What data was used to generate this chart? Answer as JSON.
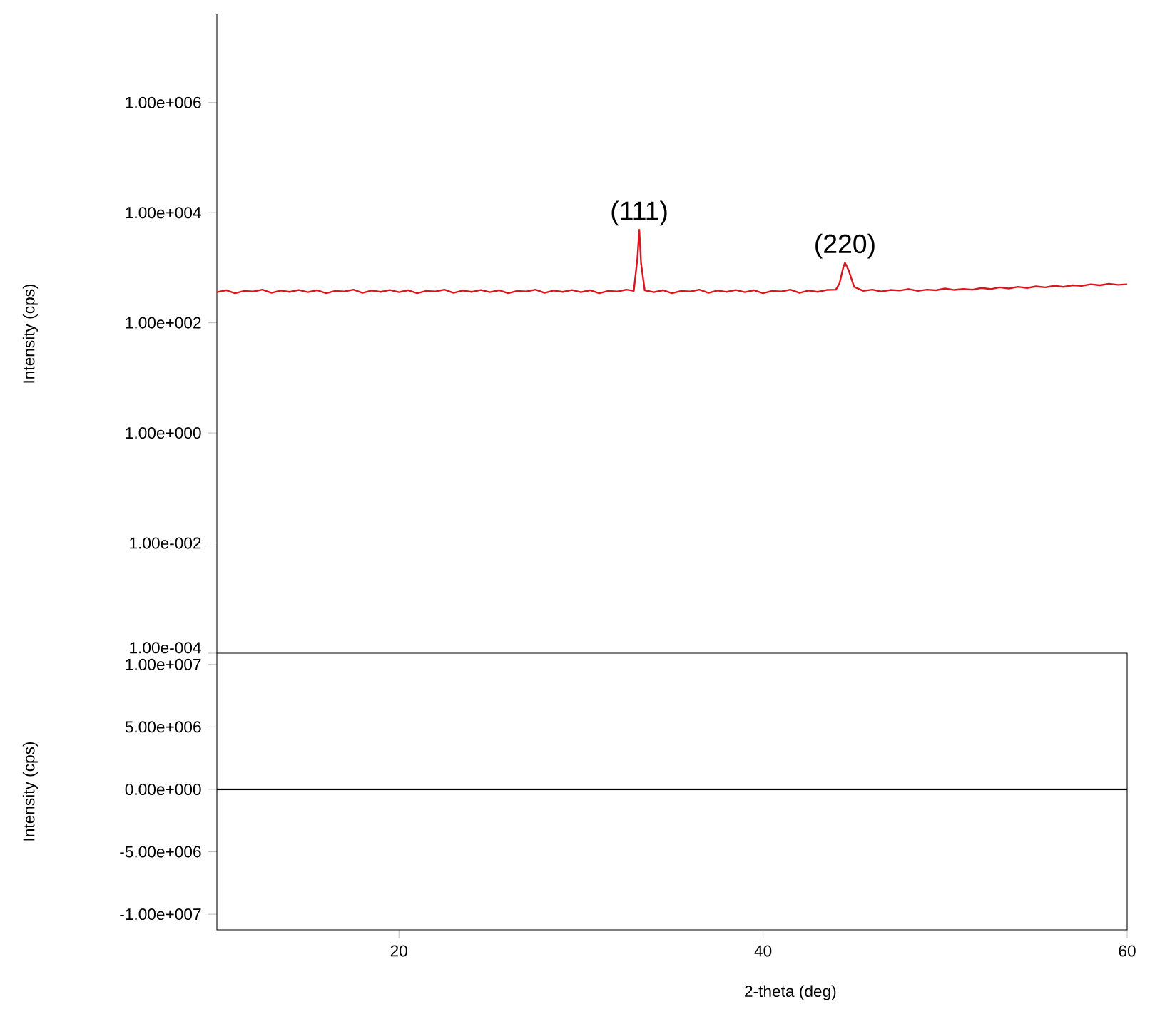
{
  "chart_data": [
    {
      "type": "line",
      "ylabel": "Intensity (cps)",
      "log": "y",
      "tick_labels": "y",
      "xlim": [
        10,
        60
      ],
      "ylim": [
        0.0001,
        40000000
      ],
      "yticks": [
        {
          "value": 0.0001,
          "label": "1.00e-004"
        },
        {
          "value": 0.01,
          "label": "1.00e-002"
        },
        {
          "value": 1,
          "label": "1.00e+000"
        },
        {
          "value": 100,
          "label": "1.00e+002"
        },
        {
          "value": 10000,
          "label": "1.00e+004"
        },
        {
          "value": 1000000,
          "label": "1.00e+006"
        }
      ],
      "annotations": [
        {
          "text": "(111)",
          "x": 33.2,
          "y": 4900
        },
        {
          "text": "(220)",
          "x": 44.5,
          "y": 1230
        }
      ],
      "series": [
        {
          "color": "#d9161c",
          "x": [
            10,
            10.5,
            11,
            11.5,
            12,
            12.5,
            13,
            13.5,
            14,
            14.5,
            15,
            15.5,
            16,
            16.5,
            17,
            17.5,
            18,
            18.5,
            19,
            19.5,
            20,
            20.5,
            21,
            21.5,
            22,
            22.5,
            23,
            23.5,
            24,
            24.5,
            25,
            25.5,
            26,
            26.5,
            27,
            27.5,
            28,
            28.5,
            29,
            29.5,
            30,
            30.5,
            31,
            31.5,
            32,
            32.5,
            32.9,
            33.1,
            33.2,
            33.3,
            33.5,
            34,
            34.5,
            35,
            35.5,
            36,
            36.5,
            37,
            37.5,
            38,
            38.5,
            39,
            39.5,
            40,
            40.5,
            41,
            41.5,
            42,
            42.5,
            43,
            43.5,
            44,
            44.2,
            44.4,
            44.5,
            44.7,
            45,
            45.5,
            46,
            46.5,
            47,
            47.5,
            48,
            48.5,
            49,
            49.5,
            50,
            50.5,
            51,
            51.5,
            52,
            52.5,
            53,
            53.5,
            54,
            54.5,
            55,
            55.5,
            56,
            56.5,
            57,
            57.5,
            58,
            58.5,
            59,
            59.5,
            60
          ],
          "values": [
            360,
            390,
            345,
            380,
            370,
            400,
            350,
            385,
            365,
            395,
            360,
            390,
            345,
            380,
            370,
            400,
            350,
            385,
            365,
            395,
            360,
            390,
            345,
            380,
            370,
            400,
            350,
            385,
            365,
            395,
            360,
            390,
            345,
            380,
            370,
            400,
            350,
            385,
            365,
            395,
            360,
            390,
            345,
            380,
            370,
            400,
            380,
            1500,
            4900,
            1200,
            390,
            360,
            390,
            345,
            380,
            370,
            400,
            350,
            385,
            365,
            395,
            360,
            390,
            345,
            380,
            370,
            400,
            350,
            385,
            365,
            395,
            400,
            520,
            1000,
            1230,
            900,
            450,
            380,
            400,
            370,
            395,
            385,
            410,
            380,
            400,
            390,
            420,
            395,
            410,
            400,
            430,
            410,
            440,
            420,
            450,
            430,
            460,
            440,
            470,
            450,
            480,
            470,
            500,
            480,
            510,
            490,
            500
          ]
        }
      ]
    },
    {
      "type": "line",
      "ylabel": "Intensity (cps)",
      "xlabel": "2-theta (deg)",
      "xlim": [
        10,
        60
      ],
      "ylim": [
        -11250000,
        10900000
      ],
      "xticks": [
        20,
        40,
        60
      ],
      "yticks": [
        {
          "value": -10000000,
          "label": "-1.00e+007"
        },
        {
          "value": -5000000,
          "label": "-5.00e+006"
        },
        {
          "value": 0,
          "label": "0.00e+000"
        },
        {
          "value": 5000000,
          "label": "5.00e+006"
        },
        {
          "value": 10000000,
          "label": "1.00e+007"
        }
      ],
      "series": [
        {
          "color": "#000000",
          "x": [
            10,
            60
          ],
          "values": [
            0,
            0
          ]
        }
      ]
    }
  ]
}
